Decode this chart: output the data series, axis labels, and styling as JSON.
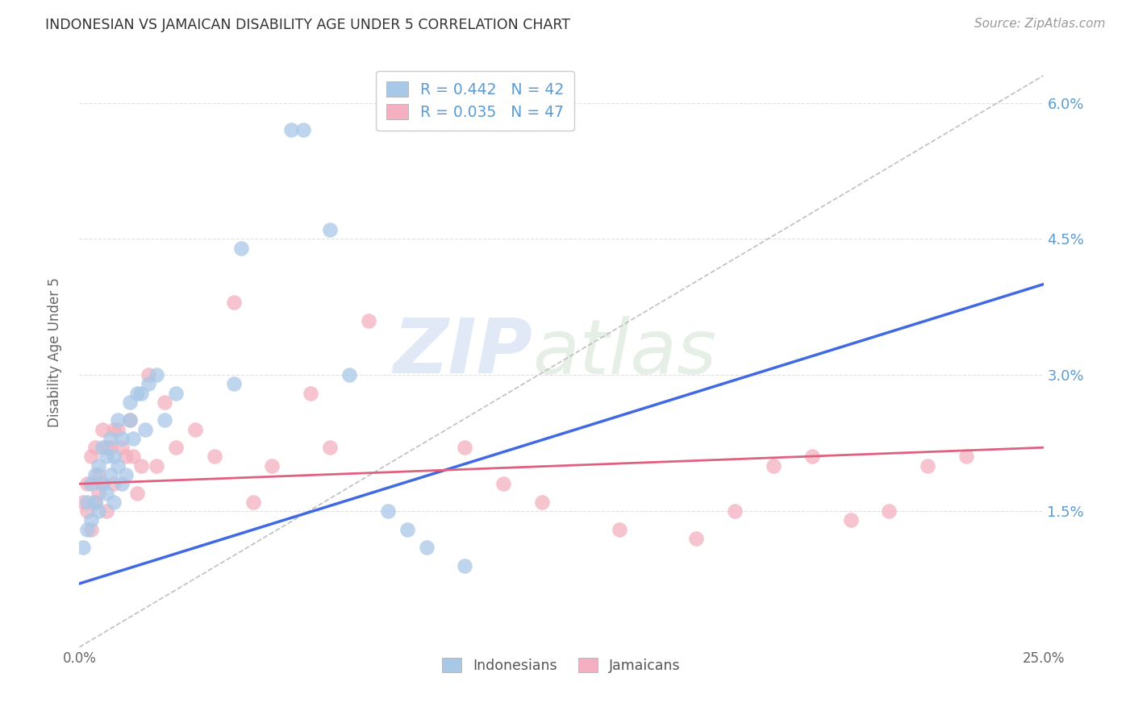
{
  "title": "INDONESIAN VS JAMAICAN DISABILITY AGE UNDER 5 CORRELATION CHART",
  "source": "Source: ZipAtlas.com",
  "ylabel": "Disability Age Under 5",
  "x_min": 0.0,
  "x_max": 0.25,
  "y_min": 0.0,
  "y_max": 0.065,
  "x_ticks": [
    0.0,
    0.05,
    0.1,
    0.15,
    0.2,
    0.25
  ],
  "x_tick_labels": [
    "0.0%",
    "",
    "",
    "",
    "",
    "25.0%"
  ],
  "y_ticks": [
    0.0,
    0.015,
    0.03,
    0.045,
    0.06
  ],
  "y_tick_labels_right": [
    "",
    "1.5%",
    "3.0%",
    "4.5%",
    "6.0%"
  ],
  "indonesian_color": "#a8c8e8",
  "jamaican_color": "#f4b0c0",
  "indonesian_line_color": "#4169e1",
  "jamaican_line_color": "#e06080",
  "indonesian_line_x": [
    0.0,
    0.25
  ],
  "indonesian_line_y": [
    0.007,
    0.04
  ],
  "jamaican_line_x": [
    0.0,
    0.25
  ],
  "jamaican_line_y": [
    0.018,
    0.022
  ],
  "diagonal_line_x": [
    0.0,
    0.25
  ],
  "diagonal_line_y": [
    0.0,
    0.063
  ],
  "indonesian_scatter_x": [
    0.001,
    0.002,
    0.002,
    0.003,
    0.003,
    0.004,
    0.004,
    0.005,
    0.005,
    0.006,
    0.006,
    0.007,
    0.007,
    0.008,
    0.008,
    0.009,
    0.009,
    0.01,
    0.01,
    0.011,
    0.011,
    0.012,
    0.013,
    0.013,
    0.014,
    0.015,
    0.016,
    0.017,
    0.018,
    0.02,
    0.022,
    0.025,
    0.04,
    0.042,
    0.055,
    0.058,
    0.065,
    0.07,
    0.08,
    0.085,
    0.09,
    0.1
  ],
  "indonesian_scatter_y": [
    0.011,
    0.013,
    0.016,
    0.014,
    0.018,
    0.016,
    0.019,
    0.015,
    0.02,
    0.018,
    0.022,
    0.017,
    0.021,
    0.019,
    0.023,
    0.016,
    0.021,
    0.02,
    0.025,
    0.018,
    0.023,
    0.019,
    0.027,
    0.025,
    0.023,
    0.028,
    0.028,
    0.024,
    0.029,
    0.03,
    0.025,
    0.028,
    0.029,
    0.044,
    0.057,
    0.057,
    0.046,
    0.03,
    0.015,
    0.013,
    0.011,
    0.009
  ],
  "jamaican_scatter_x": [
    0.001,
    0.002,
    0.002,
    0.003,
    0.003,
    0.004,
    0.004,
    0.005,
    0.005,
    0.006,
    0.006,
    0.007,
    0.007,
    0.008,
    0.009,
    0.009,
    0.01,
    0.011,
    0.012,
    0.013,
    0.014,
    0.015,
    0.016,
    0.018,
    0.02,
    0.022,
    0.025,
    0.03,
    0.035,
    0.04,
    0.045,
    0.05,
    0.06,
    0.065,
    0.075,
    0.1,
    0.11,
    0.12,
    0.14,
    0.16,
    0.17,
    0.18,
    0.19,
    0.2,
    0.21,
    0.22,
    0.23
  ],
  "jamaican_scatter_y": [
    0.016,
    0.015,
    0.018,
    0.013,
    0.021,
    0.016,
    0.022,
    0.017,
    0.019,
    0.024,
    0.018,
    0.022,
    0.015,
    0.022,
    0.018,
    0.024,
    0.024,
    0.022,
    0.021,
    0.025,
    0.021,
    0.017,
    0.02,
    0.03,
    0.02,
    0.027,
    0.022,
    0.024,
    0.021,
    0.038,
    0.016,
    0.02,
    0.028,
    0.022,
    0.036,
    0.022,
    0.018,
    0.016,
    0.013,
    0.012,
    0.015,
    0.02,
    0.021,
    0.014,
    0.015,
    0.02,
    0.021
  ],
  "watermark_zip": "ZIP",
  "watermark_atlas": "atlas",
  "background_color": "#ffffff",
  "grid_color": "#e0e0e0",
  "legend_r_ind": "R = 0.442",
  "legend_n_ind": "N = 42",
  "legend_r_jam": "R = 0.035",
  "legend_n_jam": "N = 47"
}
